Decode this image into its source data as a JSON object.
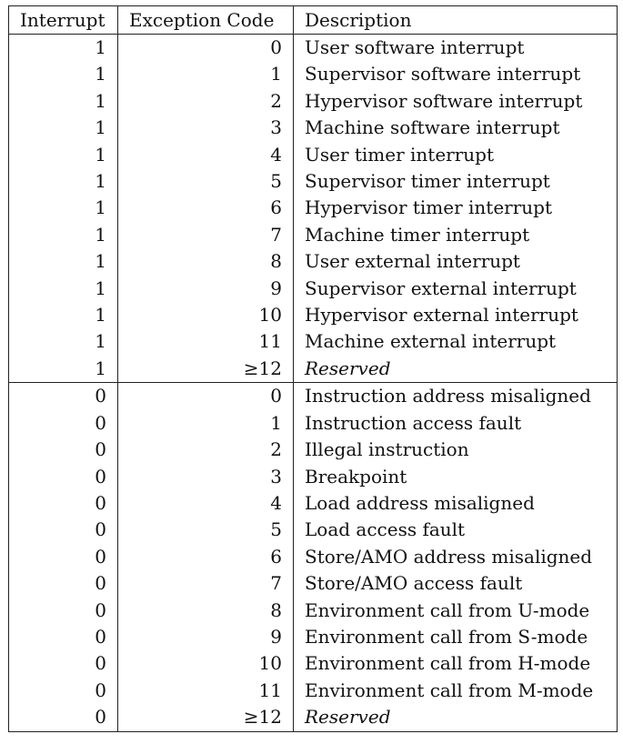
{
  "table": {
    "headers": [
      "Interrupt",
      "Exception Code",
      "Description"
    ],
    "rows": [
      {
        "interrupt": "1",
        "code": "0",
        "description": "User software interrupt",
        "italic": false
      },
      {
        "interrupt": "1",
        "code": "1",
        "description": "Supervisor software interrupt",
        "italic": false
      },
      {
        "interrupt": "1",
        "code": "2",
        "description": "Hypervisor software interrupt",
        "italic": false
      },
      {
        "interrupt": "1",
        "code": "3",
        "description": "Machine software interrupt",
        "italic": false
      },
      {
        "interrupt": "1",
        "code": "4",
        "description": "User timer interrupt",
        "italic": false
      },
      {
        "interrupt": "1",
        "code": "5",
        "description": "Supervisor timer interrupt",
        "italic": false
      },
      {
        "interrupt": "1",
        "code": "6",
        "description": "Hypervisor timer interrupt",
        "italic": false
      },
      {
        "interrupt": "1",
        "code": "7",
        "description": "Machine timer interrupt",
        "italic": false
      },
      {
        "interrupt": "1",
        "code": "8",
        "description": "User external interrupt",
        "italic": false
      },
      {
        "interrupt": "1",
        "code": "9",
        "description": "Supervisor external interrupt",
        "italic": false
      },
      {
        "interrupt": "1",
        "code": "10",
        "description": "Hypervisor external interrupt",
        "italic": false
      },
      {
        "interrupt": "1",
        "code": "11",
        "description": "Machine external interrupt",
        "italic": false
      },
      {
        "interrupt": "1",
        "code": "≥12",
        "description": "Reserved",
        "italic": true
      },
      {
        "interrupt": "0",
        "code": "0",
        "description": "Instruction address misaligned",
        "italic": false,
        "group_start": true
      },
      {
        "interrupt": "0",
        "code": "1",
        "description": "Instruction access fault",
        "italic": false
      },
      {
        "interrupt": "0",
        "code": "2",
        "description": "Illegal instruction",
        "italic": false
      },
      {
        "interrupt": "0",
        "code": "3",
        "description": "Breakpoint",
        "italic": false
      },
      {
        "interrupt": "0",
        "code": "4",
        "description": "Load address misaligned",
        "italic": false
      },
      {
        "interrupt": "0",
        "code": "5",
        "description": "Load access fault",
        "italic": false
      },
      {
        "interrupt": "0",
        "code": "6",
        "description": "Store/AMO address misaligned",
        "italic": false
      },
      {
        "interrupt": "0",
        "code": "7",
        "description": "Store/AMO access fault",
        "italic": false
      },
      {
        "interrupt": "0",
        "code": "8",
        "description": "Environment call from U-mode",
        "italic": false
      },
      {
        "interrupt": "0",
        "code": "9",
        "description": "Environment call from S-mode",
        "italic": false
      },
      {
        "interrupt": "0",
        "code": "10",
        "description": "Environment call from H-mode",
        "italic": false
      },
      {
        "interrupt": "0",
        "code": "11",
        "description": "Environment call from M-mode",
        "italic": false
      },
      {
        "interrupt": "0",
        "code": "≥12",
        "description": "Reserved",
        "italic": true
      }
    ]
  }
}
